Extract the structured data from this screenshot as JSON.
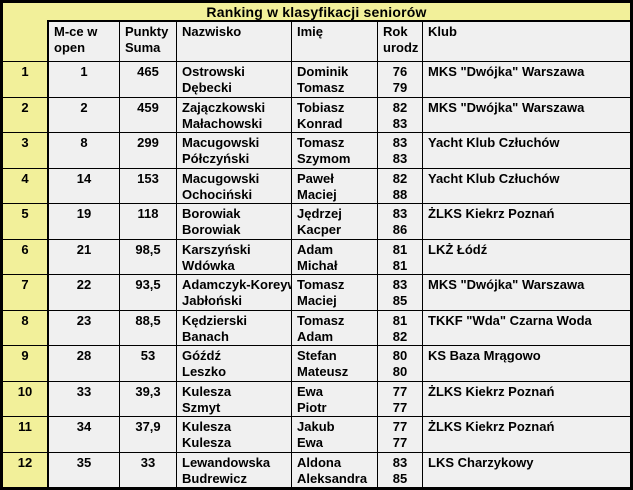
{
  "title": "Ranking w klasyfikacji seniorów",
  "colors": {
    "highlight_yellow": "#F2F09A",
    "cell_background": "#F0F0F0",
    "border": "#000000"
  },
  "columns": {
    "mce": [
      "M-ce w",
      "open"
    ],
    "punkty": [
      "Punkty",
      "Suma"
    ],
    "nazwisko": [
      "Nazwisko",
      ""
    ],
    "imie": [
      "Imię",
      ""
    ],
    "rok": [
      "Rok",
      "urodz"
    ],
    "klub": [
      "Klub",
      ""
    ]
  },
  "rows": [
    {
      "rank": "1",
      "mce": "1",
      "punkty": "465",
      "nazwiska": [
        "Ostrowski",
        "Dębecki"
      ],
      "imiona": [
        "Dominik",
        "Tomasz"
      ],
      "lata": [
        "76",
        "79"
      ],
      "klub": "MKS \"Dwójka\" Warszawa"
    },
    {
      "rank": "2",
      "mce": "2",
      "punkty": "459",
      "nazwiska": [
        "Zajączkowski",
        "Małachowski"
      ],
      "imiona": [
        "Tobiasz",
        "Konrad"
      ],
      "lata": [
        "82",
        "83"
      ],
      "klub": "MKS \"Dwójka\" Warszawa"
    },
    {
      "rank": "3",
      "mce": "8",
      "punkty": "299",
      "nazwiska": [
        "Macugowski",
        "Półczyński"
      ],
      "imiona": [
        "Tomasz",
        "Szymom"
      ],
      "lata": [
        "83",
        "83"
      ],
      "klub": "Yacht Klub Człuchów"
    },
    {
      "rank": "4",
      "mce": "14",
      "punkty": "153",
      "nazwiska": [
        "Macugowski",
        "Ochociński"
      ],
      "imiona": [
        "Paweł",
        "Maciej"
      ],
      "lata": [
        "82",
        "88"
      ],
      "klub": "Yacht Klub Człuchów"
    },
    {
      "rank": "5",
      "mce": "19",
      "punkty": "118",
      "nazwiska": [
        "Borowiak",
        "Borowiak"
      ],
      "imiona": [
        "Jędrzej",
        "Kacper"
      ],
      "lata": [
        "83",
        "86"
      ],
      "klub": "ŻLKS Kiekrz Poznań"
    },
    {
      "rank": "6",
      "mce": "21",
      "punkty": "98,5",
      "nazwiska": [
        "Karszyński",
        "Wdówka"
      ],
      "imiona": [
        "Adam",
        "Michał"
      ],
      "lata": [
        "81",
        "81"
      ],
      "klub": "LKŻ Łódź"
    },
    {
      "rank": "7",
      "mce": "22",
      "punkty": "93,5",
      "nazwiska": [
        "Adamczyk-Koreywo",
        "Jabłoński"
      ],
      "imiona": [
        "Tomasz",
        "Maciej"
      ],
      "lata": [
        "83",
        "85"
      ],
      "klub": "MKS \"Dwójka\" Warszawa"
    },
    {
      "rank": "8",
      "mce": "23",
      "punkty": "88,5",
      "nazwiska": [
        "Kędzierski",
        "Banach"
      ],
      "imiona": [
        "Tomasz",
        "Adam"
      ],
      "lata": [
        "81",
        "82"
      ],
      "klub": "TKKF \"Wda\" Czarna Woda"
    },
    {
      "rank": "9",
      "mce": "28",
      "punkty": "53",
      "nazwiska": [
        "Góźdź",
        "Leszko"
      ],
      "imiona": [
        "Stefan",
        "Mateusz"
      ],
      "lata": [
        "80",
        "80"
      ],
      "klub": "KS Baza Mrągowo"
    },
    {
      "rank": "10",
      "mce": "33",
      "punkty": "39,3",
      "nazwiska": [
        "Kulesza",
        "Szmyt"
      ],
      "imiona": [
        "Ewa",
        "Piotr"
      ],
      "lata": [
        "77",
        "77"
      ],
      "klub": "ŻLKS Kiekrz Poznań"
    },
    {
      "rank": "11",
      "mce": "34",
      "punkty": "37,9",
      "nazwiska": [
        "Kulesza",
        "Kulesza"
      ],
      "imiona": [
        "Jakub",
        "Ewa"
      ],
      "lata": [
        "77",
        "77"
      ],
      "klub": "ŻLKS Kiekrz Poznań"
    },
    {
      "rank": "12",
      "mce": "35",
      "punkty": "33",
      "nazwiska": [
        "Lewandowska",
        "Budrewicz"
      ],
      "imiona": [
        "Aldona",
        "Aleksandra"
      ],
      "lata": [
        "83",
        "85"
      ],
      "klub": "LKS Charzykowy"
    }
  ]
}
